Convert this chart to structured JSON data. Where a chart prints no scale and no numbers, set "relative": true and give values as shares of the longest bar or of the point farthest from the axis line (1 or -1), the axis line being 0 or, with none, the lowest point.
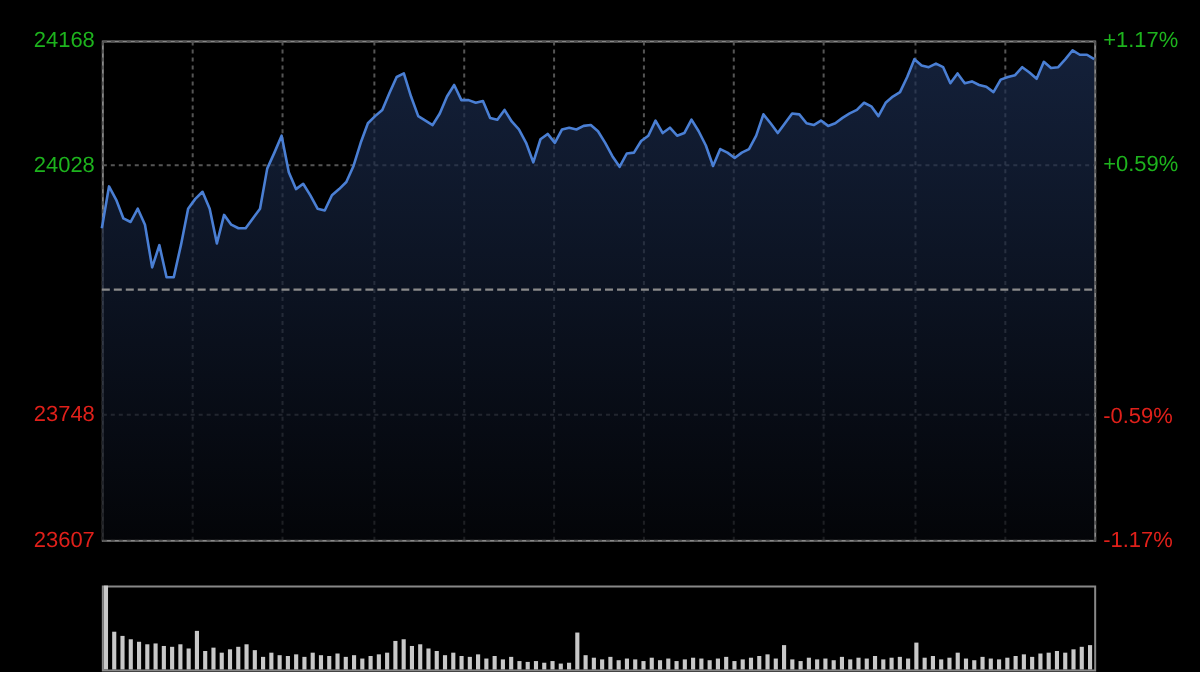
{
  "chart_data": [
    {
      "type": "area",
      "categories": [
        null,
        null,
        null,
        null,
        null,
        null,
        null,
        null,
        null,
        null,
        null,
        null,
        null,
        null,
        null,
        null,
        null,
        null,
        null,
        null,
        null,
        null,
        null,
        null,
        null,
        null,
        null,
        null,
        null,
        null,
        null,
        null,
        null,
        null,
        null,
        null,
        null,
        null,
        null,
        null,
        null,
        null,
        null,
        null,
        null,
        null,
        null,
        null,
        null,
        null,
        null,
        null,
        null,
        null,
        null,
        null,
        null,
        null,
        null,
        null,
        null,
        null,
        null,
        null,
        null,
        null,
        null,
        null,
        null,
        null,
        null,
        null,
        null,
        null,
        null,
        null,
        null,
        null,
        null,
        null,
        null,
        null,
        null,
        null,
        null,
        null,
        null,
        null,
        null,
        null,
        null,
        null,
        null,
        null,
        null,
        null,
        null,
        null,
        null,
        null,
        null,
        null,
        null,
        null,
        null,
        null,
        null,
        null,
        null,
        null,
        null,
        null,
        null,
        null,
        null,
        null,
        null,
        null,
        null,
        null,
        null,
        null,
        null,
        null,
        null,
        null,
        null,
        null,
        null,
        null,
        null,
        null,
        null,
        null,
        null,
        null,
        null,
        null,
        null
      ],
      "series": [
        {
          "color": "#4a7fd4",
          "values": [
            23957,
            24004,
            23989,
            23968,
            23964,
            23979,
            23961,
            23913,
            23938,
            23902,
            23902,
            23938,
            23979,
            23990,
            23998,
            23979,
            23940,
            23972,
            23961,
            23957,
            23957,
            23968,
            23979,
            24024,
            24042,
            24061,
            24020,
            24001,
            24007,
            23994,
            23979,
            23977,
            23994,
            24001,
            24009,
            24027,
            24053,
            24075,
            24083,
            24090,
            24109,
            24127,
            24131,
            24105,
            24083,
            24078,
            24073,
            24086,
            24105,
            24118,
            24101,
            24101,
            24098,
            24100,
            24081,
            24079,
            24090,
            24077,
            24068,
            24053,
            24031,
            24057,
            24063,
            24053,
            24068,
            24070,
            24068,
            24072,
            24073,
            24066,
            24053,
            24038,
            24026,
            24041,
            24042,
            24055,
            24061,
            24078,
            24064,
            24070,
            24061,
            24064,
            24079,
            24066,
            24050,
            24027,
            24046,
            24042,
            24036,
            24042,
            24046,
            24061,
            24085,
            24075,
            24064,
            24075,
            24086,
            24085,
            24075,
            24073,
            24078,
            24072,
            24075,
            24081,
            24086,
            24090,
            24098,
            24094,
            24083,
            24098,
            24105,
            24110,
            24127,
            24147,
            24140,
            24138,
            24142,
            24138,
            24120,
            24131,
            24120,
            24122,
            24118,
            24116,
            24110,
            24124,
            24127,
            24129,
            24138,
            24132,
            24125,
            24144,
            24137,
            24138,
            24147,
            24157,
            24152,
            24152,
            24147
          ]
        }
      ],
      "ylim": [
        23607,
        24168
      ],
      "yticks": [
        23607,
        23748,
        24028,
        24168
      ],
      "y2lim": [
        -1.17,
        1.17
      ],
      "y2ticks": [
        {
          "value": -1.17,
          "label": "-1.17%"
        },
        {
          "value": -0.59,
          "label": "-0.59%"
        },
        {
          "value": 0.59,
          "label": "+0.59%"
        },
        {
          "value": 1.17,
          "label": "+1.17%"
        }
      ],
      "ref_lines": [
        {
          "axis": "y",
          "value": 23888,
          "line_style": "dashed"
        }
      ],
      "grid": true,
      "tick_labels": "y"
    },
    {
      "type": "bar",
      "relative": true,
      "tick_labels": false,
      "categories": [
        null,
        null,
        null,
        null,
        null,
        null,
        null,
        null,
        null,
        null,
        null,
        null,
        null,
        null,
        null,
        null,
        null,
        null,
        null,
        null,
        null,
        null,
        null,
        null,
        null,
        null,
        null,
        null,
        null,
        null,
        null,
        null,
        null,
        null,
        null,
        null,
        null,
        null,
        null,
        null,
        null,
        null,
        null,
        null,
        null,
        null,
        null,
        null,
        null,
        null,
        null,
        null,
        null,
        null,
        null,
        null,
        null,
        null,
        null,
        null,
        null,
        null,
        null,
        null,
        null,
        null,
        null,
        null,
        null,
        null,
        null,
        null,
        null,
        null,
        null,
        null,
        null,
        null,
        null,
        null,
        null,
        null,
        null,
        null,
        null,
        null,
        null,
        null,
        null,
        null,
        null,
        null,
        null,
        null,
        null,
        null,
        null,
        null,
        null,
        null,
        null,
        null,
        null,
        null,
        null,
        null,
        null,
        null,
        null,
        null,
        null,
        null,
        null,
        null,
        null,
        null,
        null,
        null,
        null,
        null
      ],
      "values": [
        1.0,
        0.45,
        0.4,
        0.36,
        0.33,
        0.3,
        0.31,
        0.28,
        0.27,
        0.3,
        0.25,
        0.46,
        0.22,
        0.26,
        0.2,
        0.24,
        0.27,
        0.3,
        0.23,
        0.15,
        0.2,
        0.17,
        0.16,
        0.18,
        0.15,
        0.2,
        0.17,
        0.16,
        0.19,
        0.15,
        0.17,
        0.13,
        0.16,
        0.18,
        0.2,
        0.34,
        0.36,
        0.28,
        0.3,
        0.25,
        0.22,
        0.17,
        0.2,
        0.16,
        0.15,
        0.18,
        0.13,
        0.16,
        0.12,
        0.15,
        0.1,
        0.09,
        0.1,
        0.08,
        0.1,
        0.07,
        0.08,
        0.44,
        0.17,
        0.14,
        0.12,
        0.15,
        0.11,
        0.13,
        0.12,
        0.1,
        0.14,
        0.11,
        0.13,
        0.1,
        0.12,
        0.14,
        0.13,
        0.11,
        0.13,
        0.15,
        0.1,
        0.12,
        0.14,
        0.16,
        0.18,
        0.13,
        0.29,
        0.12,
        0.1,
        0.14,
        0.12,
        0.13,
        0.11,
        0.15,
        0.12,
        0.14,
        0.13,
        0.16,
        0.12,
        0.14,
        0.15,
        0.13,
        0.32,
        0.14,
        0.16,
        0.12,
        0.14,
        0.2,
        0.13,
        0.11,
        0.15,
        0.13,
        0.12,
        0.14,
        0.16,
        0.18,
        0.15,
        0.19,
        0.2,
        0.22,
        0.2,
        0.24,
        0.27,
        0.29
      ],
      "color": "#c8c8c8"
    }
  ]
}
